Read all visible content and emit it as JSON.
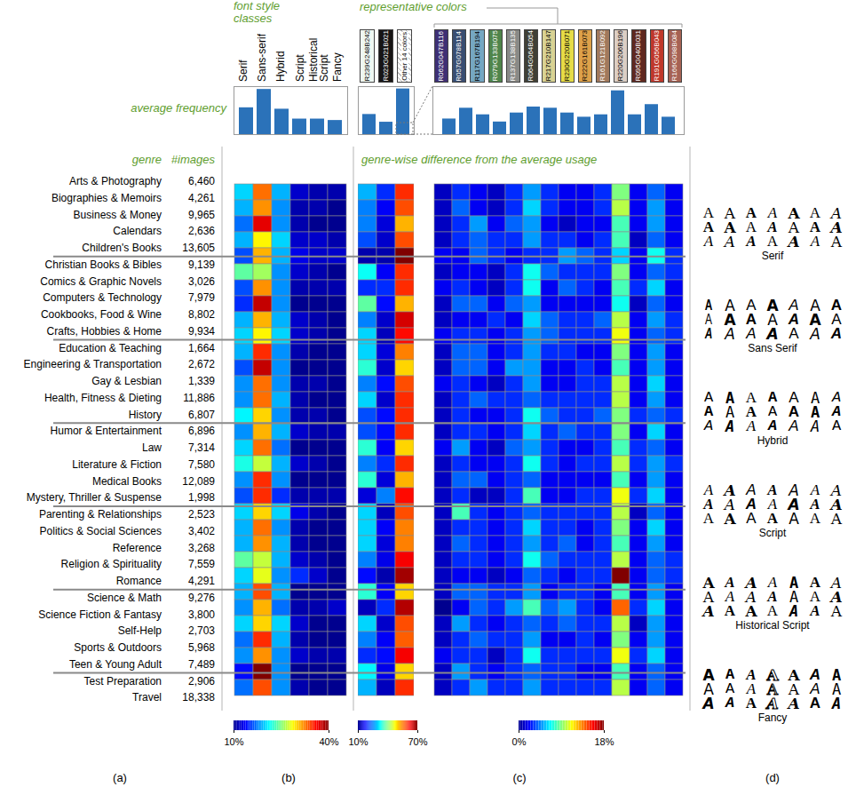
{
  "panel_labels": [
    "(a)",
    "(b)",
    "(c)",
    "(d)"
  ],
  "genres": {
    "header": "genre",
    "count_header": "#images",
    "categories": [
      "Arts & Photography",
      "Biographies & Memoirs",
      "Business & Money",
      "Calendars",
      "Children's Books",
      "Christian Books & Bibles",
      "Comics & Graphic Novels",
      "Computers & Technology",
      "Cookbooks, Food & Wine",
      "Crafts, Hobbies & Home",
      "Education & Teaching",
      "Engineering & Transportation",
      "Gay & Lesbian",
      "Health, Fitness & Dieting",
      "History",
      "Humor & Entertainment",
      "Law",
      "Literature & Fiction",
      "Medical Books",
      "Mystery, Thriller & Suspense",
      "Parenting & Relationships",
      "Politics & Social Sciences",
      "Reference",
      "Religion & Spirituality",
      "Romance",
      "Science & Math",
      "Science Fiction & Fantasy",
      "Self-Help",
      "Sports & Outdoors",
      "Teen & Young Adult",
      "Test Preparation",
      "Travel"
    ],
    "images": [
      "6,460",
      "4,261",
      "9,965",
      "2,636",
      "13,605",
      "9,139",
      "3,026",
      "7,979",
      "8,802",
      "9,934",
      "1,664",
      "2,672",
      "1,339",
      "11,886",
      "6,807",
      "6,896",
      "7,314",
      "7,580",
      "12,089",
      "1,998",
      "2,523",
      "3,402",
      "3,268",
      "7,559",
      "4,291",
      "9,276",
      "3,800",
      "2,703",
      "5,968",
      "7,489",
      "2,906",
      "18,338"
    ]
  },
  "chart_data": [
    {
      "type": "heatmap",
      "title": "font style classes",
      "x": [
        "Serif",
        "Sans-serif",
        "Hybrid",
        "Script",
        "Historical Script",
        "Fancy"
      ],
      "cells": [
        [
          20,
          33,
          19,
          12,
          11,
          11
        ],
        [
          19,
          32,
          18,
          11,
          11,
          10
        ],
        [
          17,
          37,
          18,
          11,
          10,
          10
        ],
        [
          19,
          29,
          20,
          12,
          12,
          11
        ],
        [
          16,
          31,
          19,
          13,
          12,
          12
        ],
        [
          24,
          26,
          18,
          12,
          11,
          10
        ],
        [
          16,
          32,
          18,
          11,
          11,
          11
        ],
        [
          15,
          38,
          18,
          10,
          10,
          10
        ],
        [
          19,
          31,
          19,
          12,
          11,
          10
        ],
        [
          20,
          29,
          20,
          12,
          11,
          10
        ],
        [
          19,
          35,
          18,
          11,
          10,
          10
        ],
        [
          16,
          38,
          18,
          10,
          10,
          10
        ],
        [
          18,
          33,
          18,
          11,
          11,
          10
        ],
        [
          18,
          33,
          19,
          11,
          10,
          10
        ],
        [
          21,
          30,
          18,
          11,
          11,
          10
        ],
        [
          18,
          31,
          19,
          12,
          11,
          11
        ],
        [
          20,
          33,
          17,
          10,
          10,
          10
        ],
        [
          22,
          27,
          19,
          12,
          11,
          10
        ],
        [
          18,
          35,
          18,
          10,
          10,
          10
        ],
        [
          16,
          35,
          15,
          11,
          11,
          11
        ],
        [
          20,
          30,
          20,
          13,
          11,
          10
        ],
        [
          19,
          33,
          18,
          11,
          10,
          10
        ],
        [
          19,
          32,
          19,
          11,
          10,
          10
        ],
        [
          24,
          27,
          19,
          12,
          11,
          10
        ],
        [
          20,
          28,
          18,
          15,
          12,
          10
        ],
        [
          19,
          34,
          19,
          10,
          10,
          10
        ],
        [
          18,
          31,
          17,
          11,
          11,
          12
        ],
        [
          20,
          30,
          20,
          12,
          10,
          10
        ],
        [
          17,
          35,
          19,
          11,
          10,
          10
        ],
        [
          18,
          32,
          18,
          12,
          11,
          11
        ],
        [
          14,
          40,
          18,
          10,
          10,
          10
        ],
        [
          17,
          34,
          18,
          11,
          10,
          10
        ]
      ],
      "colorbar": {
        "range": [
          10,
          40
        ],
        "ticks": [
          {
            "value": 10,
            "label": "10%"
          },
          {
            "value": 40,
            "label": "40%"
          }
        ]
      },
      "average": {
        "type": "bar",
        "label": "average frequency",
        "values": [
          19,
          32,
          18,
          11,
          11,
          10
        ],
        "ylim": [
          0,
          34
        ]
      }
    },
    {
      "type": "heatmap",
      "title": "representative colors",
      "subtitle": "genre-wise difference from the average usage",
      "x": [
        "R239G248B242",
        "R023G021B021",
        "Other 14 colors"
      ],
      "colors": [
        "#eff8f2",
        "#171515",
        null
      ],
      "cells": [
        [
          28,
          20,
          60
        ],
        [
          25,
          17,
          58
        ],
        [
          25,
          15,
          52
        ],
        [
          22,
          14,
          58
        ],
        [
          12,
          12,
          70
        ],
        [
          33,
          17,
          60
        ],
        [
          20,
          20,
          60
        ],
        [
          38,
          18,
          52
        ],
        [
          25,
          14,
          65
        ],
        [
          30,
          13,
          62
        ],
        [
          30,
          15,
          55
        ],
        [
          35,
          14,
          50
        ],
        [
          25,
          18,
          58
        ],
        [
          30,
          14,
          60
        ],
        [
          22,
          18,
          60
        ],
        [
          22,
          18,
          60
        ],
        [
          35,
          17,
          50
        ],
        [
          25,
          20,
          60
        ],
        [
          35,
          15,
          52
        ],
        [
          15,
          25,
          62
        ],
        [
          30,
          13,
          58
        ],
        [
          30,
          17,
          55
        ],
        [
          30,
          15,
          55
        ],
        [
          25,
          16,
          63
        ],
        [
          18,
          12,
          68
        ],
        [
          35,
          17,
          50
        ],
        [
          13,
          20,
          67
        ],
        [
          30,
          14,
          58
        ],
        [
          25,
          17,
          57
        ],
        [
          20,
          18,
          63
        ],
        [
          32,
          16,
          50
        ],
        [
          28,
          13,
          60
        ]
      ],
      "colorbar": {
        "range": [
          10,
          70
        ],
        "ticks": [
          {
            "value": 10,
            "label": "10%"
          },
          {
            "value": 70,
            "label": "70%"
          }
        ]
      },
      "average": {
        "type": "bar",
        "values": [
          26,
          16,
          59
        ],
        "ylim": [
          0,
          62
        ]
      }
    },
    {
      "type": "heatmap",
      "x": [
        "R062G047B116",
        "R057G078B114",
        "R117G167B194",
        "R079G133B075",
        "R137G138B135",
        "R064G064B054",
        "R217G210B147",
        "R230G220B071",
        "R222G161B073",
        "R161G121B092",
        "R220G206B196",
        "R095G040B031",
        "R191G056B043",
        "R166G098B084"
      ],
      "colors": [
        "#3e2f74",
        "#394e72",
        "#75a7c2",
        "#4f854b",
        "#898a87",
        "#404036",
        "#d9d293",
        "#e6dc47",
        "#dea149",
        "#a1795c",
        "#dccec4",
        "#5f281f",
        "#bf382b",
        "#a66254"
      ],
      "cells": [
        [
          1,
          3,
          2,
          1,
          3,
          5,
          3,
          2,
          2,
          3,
          9,
          2,
          4,
          2
        ],
        [
          1,
          4,
          2,
          1,
          3,
          6,
          3,
          2,
          2,
          3,
          10,
          2,
          5,
          2
        ],
        [
          1,
          3,
          5,
          2,
          4,
          5,
          2,
          1,
          2,
          2,
          8,
          2,
          5,
          2
        ],
        [
          1,
          3,
          4,
          3,
          3,
          5,
          3,
          3,
          2,
          3,
          8,
          1,
          4,
          2
        ],
        [
          2,
          2,
          4,
          3,
          2,
          3,
          3,
          5,
          4,
          3,
          6,
          2,
          7,
          3
        ],
        [
          1,
          2,
          2,
          1,
          3,
          7,
          4,
          3,
          3,
          3,
          9,
          2,
          4,
          3
        ],
        [
          2,
          3,
          2,
          1,
          3,
          7,
          2,
          4,
          3,
          2,
          8,
          3,
          6,
          2
        ],
        [
          1,
          4,
          4,
          2,
          4,
          5,
          2,
          2,
          2,
          2,
          7,
          1,
          4,
          2
        ],
        [
          1,
          2,
          2,
          3,
          2,
          6,
          4,
          3,
          3,
          4,
          10,
          2,
          5,
          3
        ],
        [
          2,
          3,
          3,
          2,
          3,
          5,
          4,
          3,
          3,
          3,
          11,
          2,
          4,
          3
        ],
        [
          1,
          4,
          4,
          2,
          3,
          5,
          3,
          3,
          2,
          2,
          9,
          2,
          5,
          2
        ],
        [
          1,
          4,
          4,
          2,
          5,
          5,
          2,
          2,
          3,
          2,
          8,
          2,
          5,
          2
        ],
        [
          2,
          3,
          2,
          1,
          3,
          5,
          2,
          2,
          3,
          3,
          10,
          2,
          6,
          2
        ],
        [
          1,
          3,
          4,
          3,
          3,
          4,
          3,
          3,
          3,
          3,
          10,
          2,
          5,
          2
        ],
        [
          1,
          3,
          2,
          2,
          3,
          7,
          4,
          3,
          3,
          4,
          9,
          3,
          4,
          3
        ],
        [
          1,
          3,
          3,
          2,
          3,
          6,
          3,
          4,
          3,
          3,
          9,
          2,
          6,
          2
        ],
        [
          2,
          5,
          2,
          1,
          4,
          5,
          3,
          2,
          2,
          3,
          8,
          3,
          4,
          2
        ],
        [
          1,
          3,
          2,
          2,
          3,
          7,
          3,
          2,
          3,
          3,
          10,
          3,
          5,
          3
        ],
        [
          1,
          4,
          4,
          2,
          3,
          4,
          2,
          2,
          2,
          2,
          8,
          2,
          5,
          2
        ],
        [
          1,
          3,
          1,
          1,
          3,
          8,
          2,
          2,
          3,
          3,
          11,
          3,
          6,
          2
        ],
        [
          1,
          8,
          3,
          2,
          3,
          4,
          3,
          3,
          3,
          3,
          10,
          1,
          4,
          2
        ],
        [
          1,
          3,
          3,
          2,
          3,
          6,
          3,
          3,
          2,
          3,
          9,
          2,
          6,
          2
        ],
        [
          1,
          4,
          3,
          2,
          3,
          5,
          3,
          4,
          2,
          3,
          8,
          2,
          5,
          2
        ],
        [
          1,
          3,
          3,
          2,
          3,
          7,
          4,
          3,
          3,
          3,
          10,
          2,
          4,
          3
        ],
        [
          1,
          2,
          2,
          1,
          2,
          4,
          3,
          2,
          3,
          3,
          18,
          2,
          4,
          3
        ],
        [
          1,
          4,
          4,
          3,
          3,
          5,
          2,
          3,
          3,
          2,
          8,
          2,
          5,
          2
        ],
        [
          0,
          2,
          4,
          3,
          5,
          8,
          4,
          5,
          3,
          2,
          14,
          3,
          6,
          2
        ],
        [
          1,
          5,
          3,
          2,
          3,
          4,
          3,
          4,
          3,
          3,
          10,
          1,
          5,
          2
        ],
        [
          1,
          3,
          4,
          3,
          3,
          5,
          2,
          2,
          3,
          2,
          9,
          2,
          5,
          2
        ],
        [
          2,
          3,
          3,
          1,
          3,
          7,
          3,
          3,
          3,
          3,
          11,
          3,
          6,
          2
        ],
        [
          1,
          5,
          3,
          2,
          3,
          4,
          3,
          3,
          2,
          2,
          8,
          2,
          4,
          2
        ],
        [
          1,
          3,
          5,
          3,
          3,
          5,
          3,
          3,
          3,
          3,
          10,
          2,
          4,
          2
        ]
      ],
      "colorbar": {
        "range": [
          0,
          18
        ],
        "ticks": [
          {
            "value": 0,
            "label": "0%"
          },
          {
            "value": 18,
            "label": "18%"
          }
        ]
      },
      "average": {
        "type": "bar",
        "values": [
          2.6,
          4.4,
          3.3,
          2.1,
          3.6,
          4.6,
          4.4,
          3.6,
          2.9,
          3.3,
          7.3,
          3.3,
          5.0,
          2.9
        ],
        "ylim": [
          0,
          8
        ]
      }
    }
  ],
  "font_samples": {
    "glyph": "A",
    "classes": [
      "Serif",
      "Sans Serif",
      "Hybrid",
      "Script",
      "Historical Script",
      "Fancy"
    ]
  }
}
